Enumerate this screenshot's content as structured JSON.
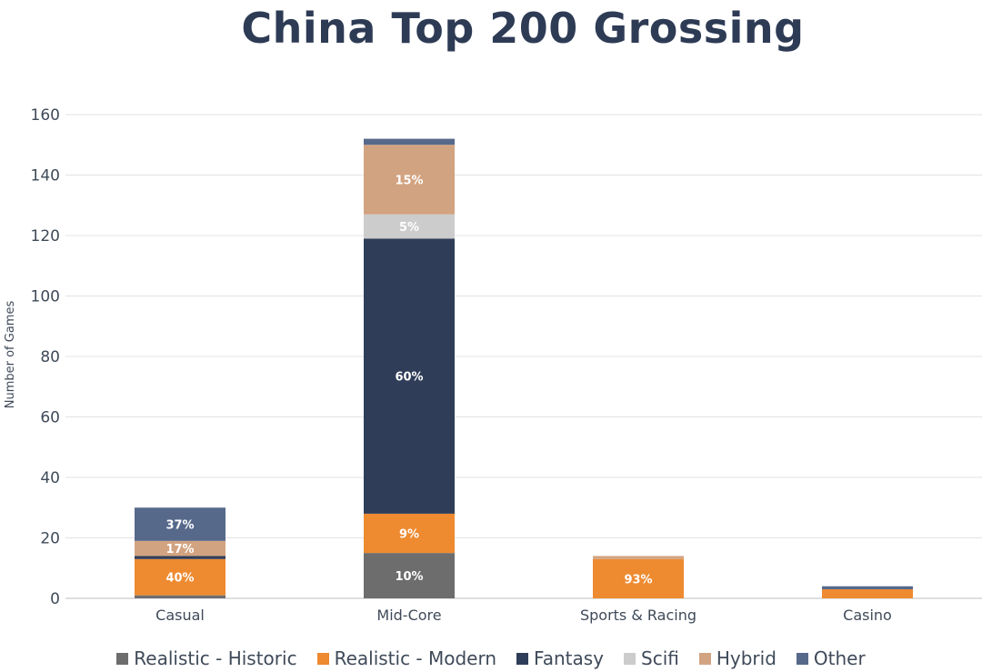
{
  "chart_data": {
    "type": "bar",
    "stacked": true,
    "title": "China Top 200 Grossing",
    "ylabel": "Number of Games",
    "xlabel": "",
    "ylim": [
      0,
      160
    ],
    "yticks": [
      0,
      20,
      40,
      60,
      80,
      100,
      120,
      140,
      160
    ],
    "grid": true,
    "legend": "bottom",
    "categories": [
      "Casual",
      "Mid-Core",
      "Sports & Racing",
      "Casino"
    ],
    "series": [
      {
        "name": "Realistic - Historic",
        "color": "#6d6d6d",
        "values": [
          1,
          15,
          0,
          0
        ],
        "labels": [
          "",
          "10%",
          "",
          ""
        ]
      },
      {
        "name": "Realistic - Modern",
        "color": "#ee8a30",
        "values": [
          12,
          13,
          13,
          3
        ],
        "labels": [
          "40%",
          "9%",
          "93%",
          ""
        ]
      },
      {
        "name": "Fantasy",
        "color": "#2f3d58",
        "values": [
          1,
          91,
          0,
          0
        ],
        "labels": [
          "",
          "60%",
          "",
          ""
        ]
      },
      {
        "name": "Scifi",
        "color": "#cccccc",
        "values": [
          0,
          8,
          0,
          0
        ],
        "labels": [
          "",
          "5%",
          "",
          ""
        ]
      },
      {
        "name": "Hybrid",
        "color": "#d2a380",
        "values": [
          5,
          23,
          1,
          0
        ],
        "labels": [
          "17%",
          "15%",
          "",
          ""
        ]
      },
      {
        "name": "Other",
        "color": "#56698b",
        "values": [
          11,
          2,
          0,
          1
        ],
        "labels": [
          "37%",
          "",
          "",
          ""
        ]
      }
    ]
  }
}
